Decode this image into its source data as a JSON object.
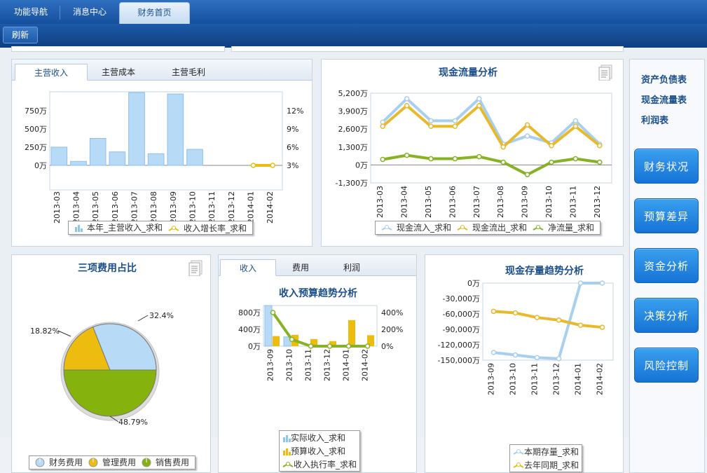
{
  "nav": {
    "tabs": [
      "功能导航",
      "消息中心",
      "财务首页"
    ]
  },
  "toolbar": {
    "refresh": "刷新"
  },
  "revenue": {
    "tabs": [
      "主营收入",
      "主营成本",
      "主营毛利"
    ],
    "chart_data": {
      "type": "bar",
      "categories": [
        "2013-03",
        "2013-04",
        "2013-05",
        "2013-06",
        "2013-07",
        "2013-08",
        "2013-09",
        "2013-10",
        "2013-11",
        "2013-12",
        "2014-01",
        "2014-02"
      ],
      "yticks_left": [
        "750万",
        "500万",
        "250万",
        "0万"
      ],
      "yticks_right": [
        "12%",
        "9%",
        "6%",
        "3%"
      ],
      "series": [
        {
          "name": "本年_主营收入_求和",
          "type": "bar",
          "values": [
            250,
            55,
            370,
            185,
            1000,
            160,
            980,
            220,
            0,
            0,
            0,
            0
          ]
        },
        {
          "name": "收入增长率_求和",
          "type": "line",
          "axis": "right",
          "x": [
            "2014-01",
            "2014-02"
          ],
          "values": [
            3,
            3
          ]
        }
      ]
    }
  },
  "cashflow": {
    "title": "现金流量分析",
    "chart_data": {
      "type": "line",
      "categories": [
        "2013-03",
        "2013-04",
        "2013-05",
        "2013-06",
        "2013-07",
        "2013-08",
        "2013-09",
        "2013-10",
        "2013-11",
        "2013-12"
      ],
      "yticks": [
        "5,200万",
        "3,900万",
        "2,600万",
        "1,300万",
        "0万",
        "-1,300万"
      ],
      "ylim": [
        -1300,
        5200
      ],
      "series": [
        {
          "name": "现金流入_求和",
          "color": "#a9cfee",
          "values": [
            3100,
            4800,
            3200,
            3200,
            4800,
            1500,
            2100,
            1600,
            3200,
            1500
          ]
        },
        {
          "name": "现金流出_求和",
          "color": "#e8b92a",
          "values": [
            2800,
            4300,
            2800,
            2800,
            4300,
            1300,
            2900,
            1400,
            2800,
            1400
          ]
        },
        {
          "name": "净流量_求和",
          "color": "#86b224",
          "values": [
            400,
            700,
            450,
            450,
            600,
            200,
            -700,
            200,
            450,
            200
          ]
        }
      ]
    }
  },
  "expense": {
    "title": "三项费用占比",
    "chart_data": {
      "type": "pie",
      "series": [
        {
          "name": "财务费用",
          "value": 32.4,
          "color": "#b7daf7"
        },
        {
          "name": "管理费用",
          "value": 18.82,
          "color": "#ecbc0f"
        },
        {
          "name": "销售费用",
          "value": 48.79,
          "color": "#86b20d"
        }
      ],
      "labels": [
        "32.4%",
        "18.82%",
        "48.79%"
      ]
    }
  },
  "budget": {
    "tabs": [
      "收入",
      "费用",
      "利润"
    ],
    "title": "收入预算趋势分析",
    "chart_data": {
      "type": "bar",
      "categories": [
        "2013-09",
        "2013-10",
        "2013-11",
        "2013-12",
        "2014-01",
        "2014-02"
      ],
      "yticks_left": [
        "800万",
        "400万",
        "0万"
      ],
      "yticks_right": [
        "400%",
        "200%",
        "0%"
      ],
      "series": [
        {
          "name": "实际收入_求和",
          "color": "#b7daf7",
          "values": [
            980,
            220,
            0,
            0,
            0,
            0
          ]
        },
        {
          "name": "预算收入_求和",
          "color": "#ecbc0f",
          "values": [
            240,
            270,
            170,
            120,
            620,
            260
          ]
        },
        {
          "name": "收入执行率_求和",
          "color": "#86b224",
          "axis": "right",
          "values": [
            400,
            80,
            0,
            0,
            0,
            0
          ]
        }
      ]
    }
  },
  "stock": {
    "title": "现金存量趋势分析",
    "chart_data": {
      "type": "line",
      "categories": [
        "2013-09",
        "2013-10",
        "2013-11",
        "2013-12",
        "2014-01",
        "2014-02"
      ],
      "yticks": [
        "0万",
        "-30,000万",
        "-60,000万",
        "-90,000万",
        "-120,000万",
        "-150,000万"
      ],
      "ylim": [
        -150000,
        0
      ],
      "series": [
        {
          "name": "本期存量_求和",
          "color": "#a9cfee",
          "values": [
            -135000,
            -140000,
            -145000,
            -147000,
            0,
            0
          ]
        },
        {
          "name": "去年同期_求和",
          "color": "#e8b92a",
          "values": [
            -55000,
            -58000,
            -67000,
            -72000,
            -82000,
            -86000
          ]
        }
      ]
    }
  },
  "sidebar": {
    "links": [
      "资产负债表",
      "现金流量表",
      "利润表"
    ],
    "buttons": [
      "财务状况",
      "预算差异",
      "资金分析",
      "决策分析",
      "风险控制"
    ]
  },
  "colors": {
    "blue": "#b7daf7",
    "gold": "#ecbc0f",
    "green": "#86b224"
  }
}
